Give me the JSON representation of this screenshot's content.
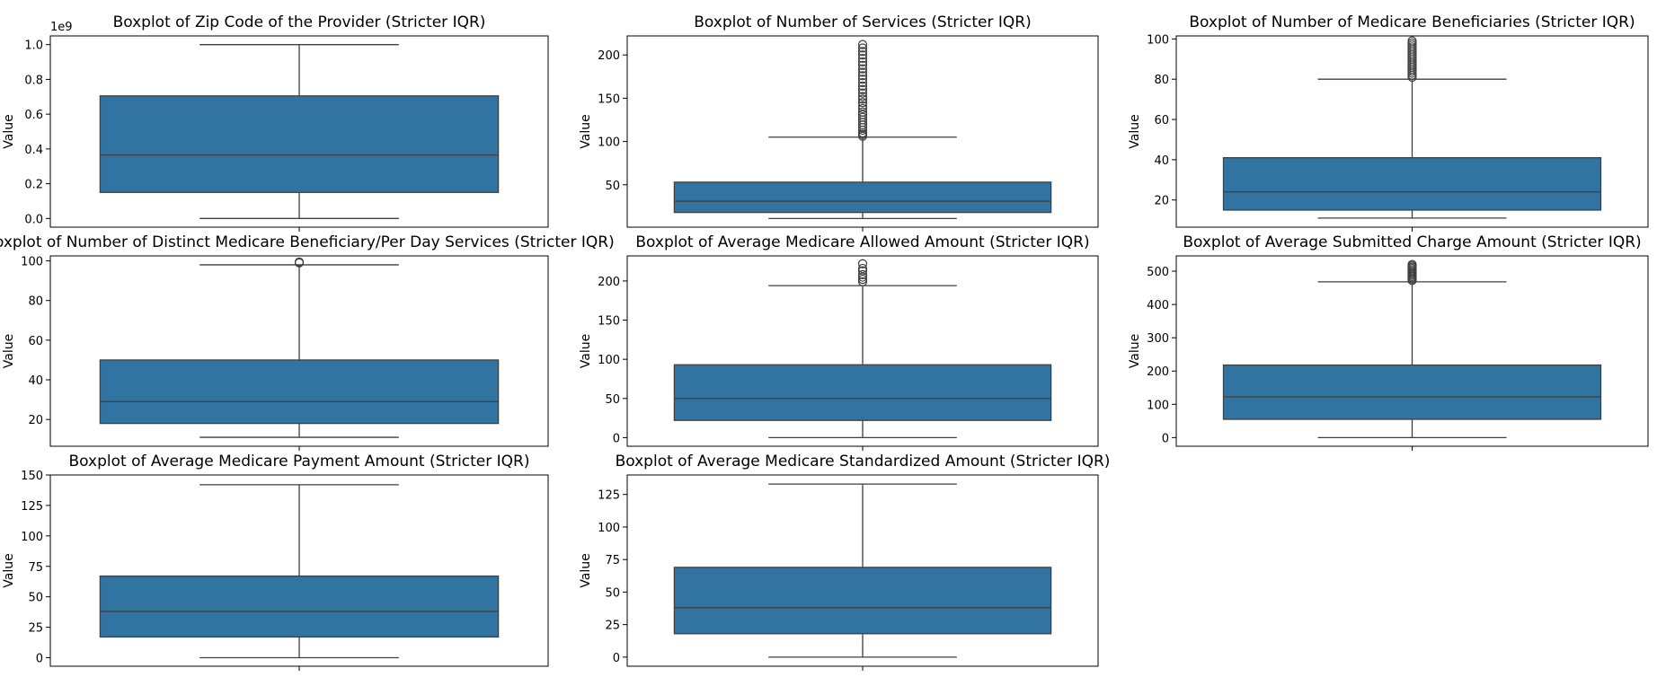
{
  "figure": {
    "box_color": "#3274a1",
    "line_color": "#3f3f3f"
  },
  "chart_data": [
    {
      "type": "boxplot",
      "title": "Boxplot of Zip Code of the Provider (Stricter IQR)",
      "ylabel": "Value",
      "scale_note": "1e9",
      "ylim": [
        -0.05,
        1.05
      ],
      "yticks": [
        0.0,
        0.2,
        0.4,
        0.6,
        0.8,
        1.0
      ],
      "ytick_labels": [
        "0.0",
        "0.2",
        "0.4",
        "0.6",
        "0.8",
        "1.0"
      ],
      "stats": {
        "whisker_low": 0.0,
        "q1": 0.15,
        "median": 0.365,
        "q3": 0.705,
        "whisker_high": 1.0
      },
      "outliers": []
    },
    {
      "type": "boxplot",
      "title": "Boxplot of Number of Services (Stricter IQR)",
      "ylabel": "Value",
      "ylim": [
        1,
        222
      ],
      "yticks": [
        50,
        100,
        150,
        200
      ],
      "ytick_labels": [
        "50",
        "100",
        "150",
        "200"
      ],
      "stats": {
        "whisker_low": 11,
        "q1": 18,
        "median": 31,
        "q3": 53,
        "whisker_high": 105
      },
      "outliers": [
        106,
        108,
        110,
        113,
        116,
        119,
        122,
        125,
        128,
        131,
        134,
        138,
        141,
        145,
        149,
        152,
        156,
        160,
        164,
        168,
        172,
        176,
        180,
        184,
        188,
        192,
        196,
        200,
        204,
        208,
        212
      ]
    },
    {
      "type": "boxplot",
      "title": "Boxplot of Number of Medicare Beneficiaries (Stricter IQR)",
      "ylabel": "Value",
      "ylim": [
        6.5,
        101.5
      ],
      "yticks": [
        20,
        40,
        60,
        80,
        100
      ],
      "ytick_labels": [
        "20",
        "40",
        "60",
        "80",
        "100"
      ],
      "stats": {
        "whisker_low": 11,
        "q1": 15,
        "median": 24,
        "q3": 41,
        "whisker_high": 80
      },
      "outliers": [
        81,
        82,
        83,
        84,
        85,
        86,
        87,
        88,
        89,
        90,
        91,
        92,
        93,
        94,
        95,
        96,
        97,
        98,
        99
      ]
    },
    {
      "type": "boxplot",
      "title": "Boxplot of Number of Distinct Medicare Beneficiary/Per Day Services (Stricter IQR)",
      "ylabel": "Value",
      "ylim": [
        6.5,
        102.5
      ],
      "yticks": [
        20,
        40,
        60,
        80,
        100
      ],
      "ytick_labels": [
        "20",
        "40",
        "60",
        "80",
        "100"
      ],
      "stats": {
        "whisker_low": 11,
        "q1": 18,
        "median": 29,
        "q3": 50,
        "whisker_high": 98
      },
      "outliers": [
        99,
        99.4
      ]
    },
    {
      "type": "boxplot",
      "title": "Boxplot of Average Medicare Allowed Amount (Stricter IQR)",
      "ylabel": "Value",
      "ylim": [
        -11,
        232
      ],
      "yticks": [
        0,
        50,
        100,
        150,
        200
      ],
      "ytick_labels": [
        "0",
        "50",
        "100",
        "150",
        "200"
      ],
      "stats": {
        "whisker_low": 0,
        "q1": 22,
        "median": 50,
        "q3": 93,
        "whisker_high": 194
      },
      "outliers": [
        199,
        202,
        205,
        208,
        213,
        216,
        222
      ]
    },
    {
      "type": "boxplot",
      "title": "Boxplot of Average Submitted Charge Amount (Stricter IQR)",
      "ylabel": "Value",
      "ylim": [
        -26,
        546
      ],
      "yticks": [
        0,
        100,
        200,
        300,
        400,
        500
      ],
      "ytick_labels": [
        "0",
        "100",
        "200",
        "300",
        "400",
        "500"
      ],
      "stats": {
        "whisker_low": 0,
        "q1": 55,
        "median": 122,
        "q3": 218,
        "whisker_high": 468
      },
      "outliers": [
        472,
        476,
        480,
        484,
        488,
        492,
        496,
        500,
        504,
        508,
        512,
        516,
        520
      ]
    },
    {
      "type": "boxplot",
      "title": "Boxplot of Average Medicare Payment Amount (Stricter IQR)",
      "ylabel": "Value",
      "ylim": [
        -7,
        150
      ],
      "yticks": [
        0,
        25,
        50,
        75,
        100,
        125,
        150
      ],
      "ytick_labels": [
        "0",
        "25",
        "50",
        "75",
        "100",
        "125",
        "150"
      ],
      "stats": {
        "whisker_low": 0,
        "q1": 17,
        "median": 38,
        "q3": 67,
        "whisker_high": 142
      },
      "outliers": []
    },
    {
      "type": "boxplot",
      "title": "Boxplot of Average Medicare Standardized Amount (Stricter IQR)",
      "ylabel": "Value",
      "ylim": [
        -7,
        140
      ],
      "yticks": [
        0,
        25,
        50,
        75,
        100,
        125
      ],
      "ytick_labels": [
        "0",
        "25",
        "50",
        "75",
        "100",
        "125"
      ],
      "stats": {
        "whisker_low": 0,
        "q1": 18,
        "median": 38,
        "q3": 69,
        "whisker_high": 133
      },
      "outliers": []
    }
  ]
}
